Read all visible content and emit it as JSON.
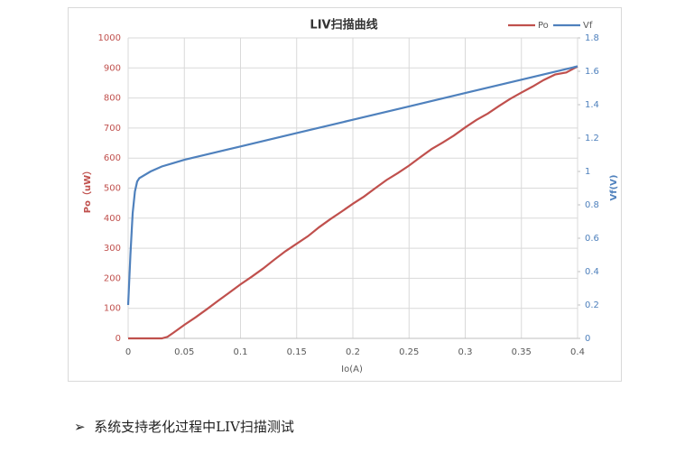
{
  "chart_data": {
    "type": "line",
    "title": "LIV扫描曲线",
    "xlabel": "Io(A)",
    "ylabel": "Po（uW）",
    "y2label": "Vf(V)",
    "xlim": [
      0,
      0.4
    ],
    "xticks": [
      0,
      0.05,
      0.1,
      0.15,
      0.2,
      0.25,
      0.3,
      0.35,
      0.4
    ],
    "ylim": [
      0,
      1000
    ],
    "yticks": [
      0,
      100,
      200,
      300,
      400,
      500,
      600,
      700,
      800,
      900,
      1000
    ],
    "y2lim": [
      0,
      1.8
    ],
    "y2ticks": [
      0,
      0.2,
      0.4,
      0.6,
      0.8,
      1,
      1.2,
      1.4,
      1.6,
      1.8
    ],
    "grid": true,
    "legend": "top-right",
    "series": [
      {
        "name": "Po",
        "color": "#c0504d",
        "x": [
          0,
          0.01,
          0.02,
          0.03,
          0.035,
          0.04,
          0.05,
          0.06,
          0.07,
          0.08,
          0.09,
          0.1,
          0.11,
          0.12,
          0.13,
          0.14,
          0.15,
          0.16,
          0.17,
          0.18,
          0.19,
          0.2,
          0.21,
          0.22,
          0.23,
          0.24,
          0.25,
          0.26,
          0.27,
          0.28,
          0.29,
          0.3,
          0.31,
          0.32,
          0.33,
          0.34,
          0.35,
          0.36,
          0.37,
          0.38,
          0.39,
          0.4
        ],
        "values": [
          0,
          0,
          0,
          0,
          5,
          18,
          45,
          70,
          97,
          125,
          152,
          180,
          205,
          232,
          262,
          290,
          315,
          340,
          370,
          397,
          422,
          448,
          472,
          500,
          527,
          550,
          575,
          603,
          630,
          652,
          675,
          702,
          727,
          748,
          773,
          797,
          818,
          838,
          860,
          878,
          885,
          905
        ]
      },
      {
        "name": "Vf",
        "color": "#4f81bd",
        "axis": "y2",
        "x": [
          0,
          0.002,
          0.004,
          0.006,
          0.008,
          0.01,
          0.02,
          0.03,
          0.04,
          0.05,
          0.1,
          0.15,
          0.2,
          0.25,
          0.3,
          0.35,
          0.4
        ],
        "values": [
          0.2,
          0.5,
          0.75,
          0.88,
          0.94,
          0.96,
          1.0,
          1.03,
          1.05,
          1.07,
          1.15,
          1.23,
          1.31,
          1.39,
          1.47,
          1.55,
          1.63
        ]
      }
    ]
  },
  "note": {
    "text": "系统支持老化过程中LIV扫描测试"
  }
}
